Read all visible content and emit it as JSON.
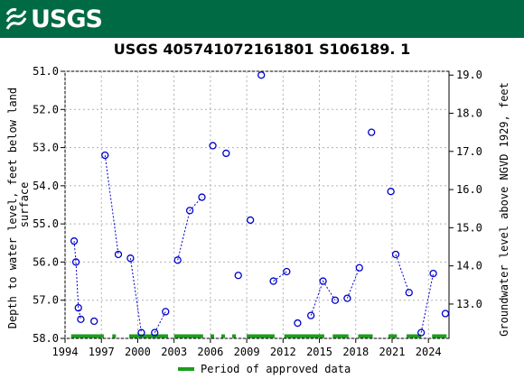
{
  "header": {
    "logo_text": "USGS",
    "logo_icon": "usgs-wave-icon",
    "bar_color": "#006a45"
  },
  "chart_data": {
    "type": "scatter",
    "title": "USGS 405741072161801 S106189. 1",
    "ylabel_left_lines": [
      "Depth to water level, feet below land",
      "surface"
    ],
    "ylabel_right": "Groundwater level above NGVD 1929, feet",
    "x_ticks": [
      1994,
      1997,
      2000,
      2003,
      2006,
      2009,
      2012,
      2015,
      2018,
      2021,
      2024
    ],
    "x_range": [
      1994,
      2025.7
    ],
    "y_left_ticks": [
      "51.0",
      "52.0",
      "53.0",
      "54.0",
      "55.0",
      "56.0",
      "57.0",
      "58.0"
    ],
    "y_left_range": [
      51.0,
      58.0
    ],
    "y_left_inverted": true,
    "y_right_ticks": [
      "19.0",
      "18.0",
      "17.0",
      "16.0",
      "15.0",
      "14.0",
      "13.0"
    ],
    "y_right_at_left_zero": 70.1,
    "marker_color": "#0000cc",
    "series": [
      {
        "values": [
          [
            1994.75,
            55.45
          ],
          [
            1994.9,
            56.0
          ],
          [
            1995.1,
            57.2
          ],
          [
            1995.3,
            57.5
          ],
          [
            1996.4,
            57.55
          ],
          [
            1997.3,
            53.2
          ],
          [
            1998.4,
            55.8
          ],
          [
            1999.4,
            55.9
          ],
          [
            2000.3,
            57.85
          ],
          [
            2001.4,
            57.85
          ],
          [
            2002.3,
            57.3
          ],
          [
            2003.3,
            55.95
          ],
          [
            2004.3,
            54.65
          ],
          [
            2005.3,
            54.3
          ],
          [
            2006.2,
            52.95
          ],
          [
            2007.3,
            53.15
          ],
          [
            2008.3,
            56.35
          ],
          [
            2009.3,
            54.9
          ],
          [
            2010.2,
            51.1
          ],
          [
            2011.2,
            56.5
          ],
          [
            2012.3,
            56.25
          ],
          [
            2013.2,
            57.6
          ],
          [
            2014.3,
            57.4
          ],
          [
            2015.3,
            56.5
          ],
          [
            2016.3,
            57.0
          ],
          [
            2017.3,
            56.95
          ],
          [
            2018.3,
            56.15
          ],
          [
            2019.3,
            52.6
          ],
          [
            2020.9,
            54.15
          ],
          [
            2021.3,
            55.8
          ],
          [
            2022.4,
            56.8
          ],
          [
            2023.4,
            57.85
          ],
          [
            2024.4,
            56.3
          ],
          [
            2025.4,
            57.35
          ]
        ],
        "segments": [
          [
            0,
            1,
            2,
            3
          ],
          [
            5,
            6
          ],
          [
            7,
            8
          ],
          [
            9,
            10
          ],
          [
            11,
            12,
            13
          ],
          [
            19,
            20
          ],
          [
            22,
            23,
            24
          ],
          [
            25,
            26
          ],
          [
            29,
            30
          ],
          [
            31,
            32
          ]
        ]
      }
    ],
    "approved_periods": [
      [
        1994.5,
        1997.2
      ],
      [
        1997.9,
        1998.2
      ],
      [
        1999.3,
        2002.5
      ],
      [
        2003.0,
        2005.4
      ],
      [
        2006.0,
        2006.3
      ],
      [
        2006.9,
        2007.2
      ],
      [
        2007.8,
        2008.1
      ],
      [
        2009.0,
        2011.3
      ],
      [
        2012.1,
        2015.4
      ],
      [
        2016.1,
        2017.4
      ],
      [
        2018.2,
        2019.4
      ],
      [
        2020.7,
        2021.4
      ],
      [
        2022.2,
        2023.4
      ],
      [
        2024.3,
        2025.5
      ]
    ],
    "approved_color": "#1a9e1a",
    "legend": {
      "label": "Period of approved data",
      "placement": "bottom-center"
    }
  }
}
